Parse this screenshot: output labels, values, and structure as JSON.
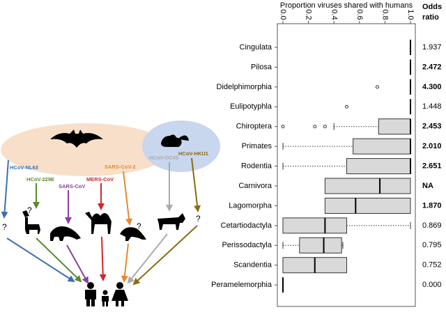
{
  "chart_data": {
    "type": "box",
    "x_label": "Proportion viruses shared with humans",
    "xlim": [
      0,
      1
    ],
    "xticks": [
      {
        "value": 0,
        "label": "0.0"
      },
      0.2,
      0.4,
      0.6,
      0.8,
      {
        "value": 1,
        "label": "1.0"
      }
    ],
    "categories": [
      "Cingulata",
      "Pilosa",
      "Didelphimorphia",
      "Eulipotyphla",
      "Chiroptera",
      "Primates",
      "Rodentia",
      "Carnivora",
      "Lagomorpha",
      "Cetartiodactyla",
      "Perissodactyla",
      "Scandentia",
      "Peramelemorphia"
    ],
    "boxes": [
      {
        "min": 1,
        "q1": 1,
        "median": 1,
        "q3": 1,
        "max": 1,
        "outliers": []
      },
      {
        "min": 1,
        "q1": 1,
        "median": 1,
        "q3": 1,
        "max": 1,
        "outliers": []
      },
      {
        "min": 1,
        "q1": 1,
        "median": 1,
        "q3": 1,
        "max": 1,
        "outliers": [
          0.74
        ]
      },
      {
        "min": 1,
        "q1": 1,
        "median": 1,
        "q3": 1,
        "max": 1,
        "outliers": [
          0.5
        ]
      },
      {
        "min": 0.4,
        "q1": 0.75,
        "median": 1,
        "q3": 1,
        "max": 1,
        "outliers": [
          0,
          0.25,
          0.33
        ]
      },
      {
        "min": 0,
        "q1": 0.55,
        "median": 1,
        "q3": 1,
        "max": 1,
        "outliers": []
      },
      {
        "min": 0,
        "q1": 0.5,
        "median": 1,
        "q3": 1,
        "max": 1,
        "outliers": []
      },
      {
        "min": 0.33,
        "q1": 0.33,
        "median": 0.76,
        "q3": 1,
        "max": 1,
        "outliers": []
      },
      {
        "min": 0.33,
        "q1": 0.33,
        "median": 0.57,
        "q3": 1,
        "max": 1,
        "outliers": []
      },
      {
        "min": 0,
        "q1": 0,
        "median": 0.33,
        "q3": 0.5,
        "max": 1,
        "outliers": []
      },
      {
        "min": 0,
        "q1": 0.13,
        "median": 0.32,
        "q3": 0.46,
        "max": 0.47,
        "outliers": []
      },
      {
        "min": 0,
        "q1": 0,
        "median": 0.25,
        "q3": 0.5,
        "max": 0.5,
        "outliers": []
      },
      {
        "min": 0,
        "q1": 0,
        "median": 0,
        "q3": 0,
        "max": 0,
        "outliers": []
      }
    ],
    "box_color": "#d9d9d9",
    "odds_ratio_header": [
      "Odds",
      "ratio"
    ],
    "odds_ratios": [
      "1.937",
      "2.472",
      "4.300",
      "1.448",
      "2.453",
      "2.010",
      "2.651",
      "NA",
      "1.870",
      "0.869",
      "0.795",
      "0.752",
      "0.000"
    ],
    "odds_ratio_bold": [
      false,
      true,
      true,
      false,
      true,
      true,
      true,
      true,
      true,
      false,
      false,
      false,
      false
    ]
  },
  "diagram": {
    "viruses": [
      "HCoV-NL63",
      "HCoV-229E",
      "SARS-CoV",
      "MERS-CoV",
      "SARS-CoV-2",
      "HCoV-OC43",
      "HCoV-HKU1"
    ],
    "unknown_markers": [
      "?",
      "?",
      "?",
      "?"
    ]
  }
}
